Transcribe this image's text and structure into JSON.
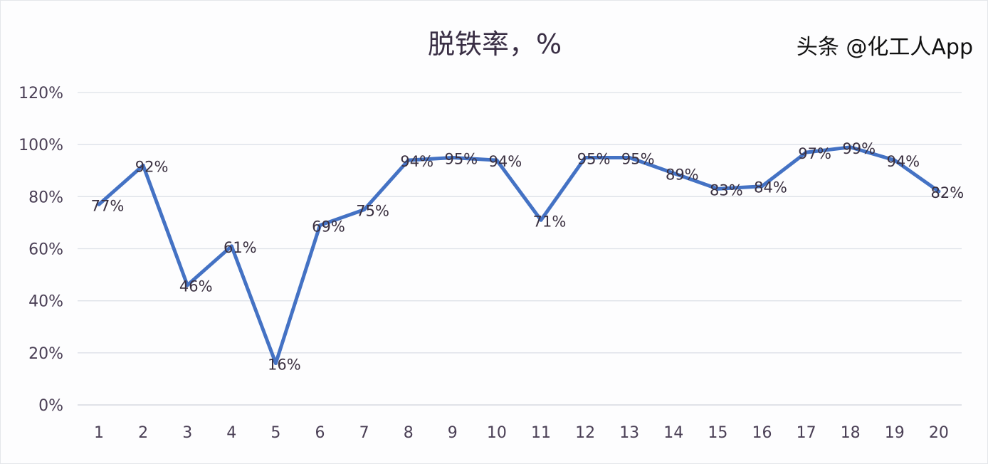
{
  "chart_data": {
    "type": "line",
    "title": "脱铁率，%",
    "categories": [
      "1",
      "2",
      "3",
      "4",
      "5",
      "6",
      "7",
      "8",
      "9",
      "10",
      "11",
      "12",
      "13",
      "14",
      "15",
      "16",
      "17",
      "18",
      "19",
      "20"
    ],
    "values": [
      77,
      92,
      46,
      61,
      16,
      69,
      75,
      94,
      95,
      94,
      71,
      95,
      95,
      89,
      83,
      84,
      97,
      99,
      94,
      82
    ],
    "data_labels": [
      "77%",
      "92%",
      "46%",
      "61%",
      "16%",
      "69%",
      "75%",
      "94%",
      "95%",
      "94%",
      "71%",
      "95%",
      "95%",
      "89%",
      "83%",
      "84%",
      "97%",
      "99%",
      "94%",
      "82%"
    ],
    "ylim": [
      0,
      120
    ],
    "yticks": [
      "0%",
      "20%",
      "40%",
      "60%",
      "80%",
      "100%",
      "120%"
    ],
    "grid": true,
    "legend": "none",
    "line_color": "#4472c4"
  },
  "watermark": "头条 @化工人App"
}
